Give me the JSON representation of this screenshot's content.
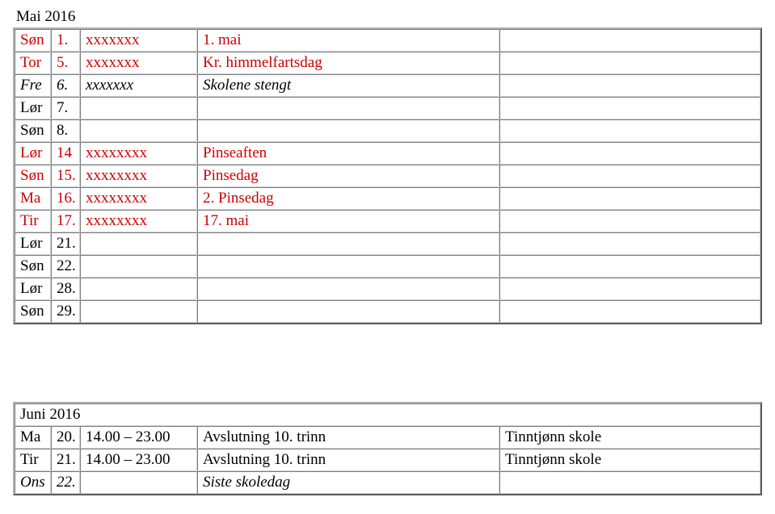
{
  "colors": {
    "text": "#000000",
    "red": "#cc0000",
    "background": "#ffffff",
    "border_outer": "#b0b0b0",
    "border_inner": "#d0d0d0"
  },
  "typography": {
    "font_family": "Times New Roman",
    "font_size_pt": 14
  },
  "layout": {
    "col_widths": {
      "day": 45,
      "num": 36,
      "time": 145,
      "place": 323
    }
  },
  "may": {
    "title": "Mai 2016",
    "rows": [
      {
        "day": "Søn",
        "num": "1.",
        "time": "xxxxxxx",
        "desc": "1. mai",
        "place": "",
        "color": "red",
        "italic": false
      },
      {
        "day": "Tor",
        "num": "5.",
        "time": "xxxxxxx",
        "desc": "Kr. himmelfartsdag",
        "place": "",
        "color": "red",
        "italic": false
      },
      {
        "day": "Fre",
        "num": "6.",
        "time": "xxxxxxx",
        "desc": "Skolene stengt",
        "place": "",
        "color": "black",
        "italic": true
      },
      {
        "day": "Lør",
        "num": "7.",
        "time": "",
        "desc": "",
        "place": "",
        "color": "black",
        "italic": false
      },
      {
        "day": "Søn",
        "num": "8.",
        "time": "",
        "desc": "",
        "place": "",
        "color": "black",
        "italic": false
      },
      {
        "day": "Lør",
        "num": "14",
        "time": "xxxxxxxx",
        "desc": "Pinseaften",
        "place": "",
        "color": "red",
        "italic": false
      },
      {
        "day": "Søn",
        "num": "15.",
        "time": "xxxxxxxx",
        "desc": "Pinsedag",
        "place": "",
        "color": "red",
        "italic": false
      },
      {
        "day": "Ma",
        "num": "16.",
        "time": "xxxxxxxx",
        "desc": "2. Pinsedag",
        "place": "",
        "color": "red",
        "italic": false
      },
      {
        "day": "Tir",
        "num": "17.",
        "time": "xxxxxxxx",
        "desc": "17. mai",
        "place": "",
        "color": "red",
        "italic": false
      },
      {
        "day": "Lør",
        "num": "21.",
        "time": "",
        "desc": "",
        "place": "",
        "color": "black",
        "italic": false
      },
      {
        "day": "Søn",
        "num": "22.",
        "time": "",
        "desc": "",
        "place": "",
        "color": "black",
        "italic": false
      },
      {
        "day": "Lør",
        "num": "28.",
        "time": "",
        "desc": "",
        "place": "",
        "color": "black",
        "italic": false
      },
      {
        "day": "Søn",
        "num": "29.",
        "time": "",
        "desc": "",
        "place": "",
        "color": "black",
        "italic": false
      }
    ]
  },
  "june": {
    "title": "Juni 2016",
    "rows": [
      {
        "day": "Ma",
        "num": "20.",
        "time": "14.00 – 23.00",
        "desc": "Avslutning 10. trinn",
        "place": "Tinntjønn skole",
        "color": "black",
        "italic": false
      },
      {
        "day": "Tir",
        "num": "21.",
        "time": "14.00 – 23.00",
        "desc": "Avslutning 10. trinn",
        "place": "Tinntjønn skole",
        "color": "black",
        "italic": false
      },
      {
        "day": "Ons",
        "num": "22.",
        "time": "",
        "desc": "Siste skoledag",
        "place": "",
        "color": "black",
        "italic": true
      }
    ]
  }
}
